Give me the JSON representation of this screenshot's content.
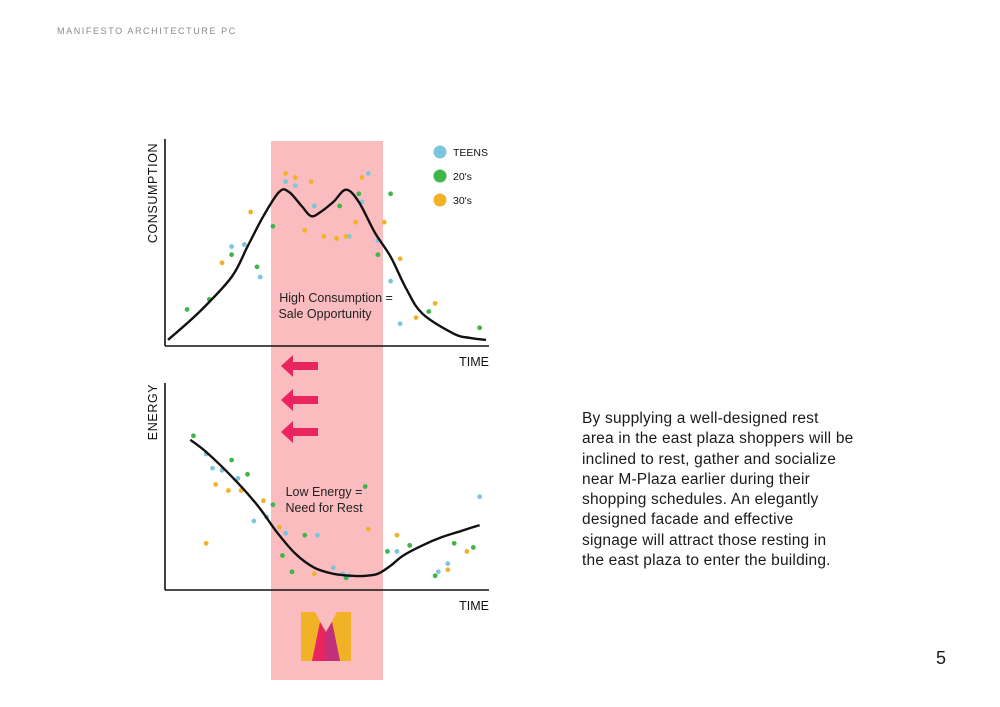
{
  "header": {
    "title": "MANIFESTO ARCHITECTURE PC"
  },
  "chart_data": [
    {
      "type": "line",
      "title": "",
      "xlabel": "TIME",
      "ylabel": "CONSUMPTION",
      "legend": {
        "placement": "top-right",
        "entries": [
          "TEENS",
          "20's",
          "30's"
        ]
      },
      "annotation": [
        "High Consumption =",
        "Sale Opportunity"
      ],
      "curve": {
        "x": [
          0,
          10,
          20,
          25,
          30,
          35,
          38,
          42,
          45,
          48,
          52,
          56,
          60,
          65,
          70,
          75,
          80,
          90,
          95,
          100
        ],
        "y": [
          2,
          16,
          33,
          48,
          63,
          75,
          75,
          68,
          63,
          65,
          70,
          76,
          70,
          55,
          43,
          27,
          15,
          5,
          3,
          2
        ]
      },
      "series": [
        {
          "name": "TEENS",
          "color": "#7cc6dd",
          "points": [
            [
              20,
              48
            ],
            [
              24,
              49
            ],
            [
              29,
              33
            ],
            [
              37,
              80
            ],
            [
              40,
              78
            ],
            [
              46,
              68
            ],
            [
              57,
              53
            ],
            [
              61,
              70
            ],
            [
              63,
              84
            ],
            [
              66,
              51
            ],
            [
              70,
              31
            ],
            [
              73,
              10
            ]
          ]
        },
        {
          "name": "20's",
          "color": "#3fb54a",
          "points": [
            [
              6,
              17
            ],
            [
              13,
              22
            ],
            [
              20,
              44
            ],
            [
              28,
              38
            ],
            [
              33,
              58
            ],
            [
              54,
              68
            ],
            [
              60,
              74
            ],
            [
              66,
              44
            ],
            [
              70,
              74
            ],
            [
              82,
              16
            ],
            [
              98,
              8
            ]
          ]
        },
        {
          "name": "30's",
          "color": "#f2b228",
          "points": [
            [
              17,
              40
            ],
            [
              26,
              65
            ],
            [
              37,
              84
            ],
            [
              40,
              82
            ],
            [
              45,
              80
            ],
            [
              43,
              56
            ],
            [
              49,
              53
            ],
            [
              53,
              52
            ],
            [
              56,
              53
            ],
            [
              59,
              60
            ],
            [
              61,
              82
            ],
            [
              68,
              60
            ],
            [
              73,
              42
            ],
            [
              78,
              13
            ],
            [
              84,
              20
            ]
          ]
        }
      ],
      "highlight_band": {
        "x_from": 30,
        "x_to": 63
      }
    },
    {
      "type": "line",
      "title": "",
      "xlabel": "TIME",
      "ylabel": "ENERGY",
      "annotation": [
        "Low Energy =",
        "Need for Rest"
      ],
      "curve": {
        "x": [
          7,
          12,
          20,
          28,
          34,
          40,
          46,
          52,
          58,
          62,
          66,
          70,
          74,
          80,
          86,
          92,
          98
        ],
        "y": [
          73,
          67,
          55,
          41,
          28,
          17,
          10,
          7,
          6,
          6,
          7,
          11,
          16,
          21,
          25,
          28,
          31
        ]
      },
      "series": [
        {
          "name": "TEENS",
          "color": "#7cc6dd",
          "points": [
            [
              12,
              66
            ],
            [
              14,
              59
            ],
            [
              17,
              58
            ],
            [
              22,
              54
            ],
            [
              27,
              33
            ],
            [
              31,
              35
            ],
            [
              37,
              27
            ],
            [
              47,
              26
            ],
            [
              52,
              10
            ],
            [
              55,
              7
            ],
            [
              57,
              6
            ],
            [
              72,
              18
            ],
            [
              85,
              8
            ],
            [
              88,
              12
            ],
            [
              98,
              45
            ]
          ]
        },
        {
          "name": "20's",
          "color": "#3fb54a",
          "points": [
            [
              8,
              75
            ],
            [
              20,
              63
            ],
            [
              25,
              56
            ],
            [
              33,
              41
            ],
            [
              36,
              16
            ],
            [
              39,
              8
            ],
            [
              43,
              26
            ],
            [
              56,
              5
            ],
            [
              62,
              50
            ],
            [
              69,
              18
            ],
            [
              76,
              21
            ],
            [
              84,
              6
            ],
            [
              90,
              22
            ],
            [
              96,
              20
            ]
          ]
        },
        {
          "name": "30's",
          "color": "#f2b228",
          "points": [
            [
              12,
              22
            ],
            [
              15,
              51
            ],
            [
              19,
              48
            ],
            [
              23,
              48
            ],
            [
              30,
              43
            ],
            [
              35,
              30
            ],
            [
              46,
              7
            ],
            [
              63,
              29
            ],
            [
              72,
              26
            ],
            [
              88,
              9
            ],
            [
              94,
              18
            ]
          ]
        }
      ]
    }
  ],
  "arrows": {
    "count": 3,
    "color": "#e8255f"
  },
  "band": {
    "color": "#fbbcbf"
  },
  "paragraph": {
    "lines": [
      "By supplying a well-designed rest",
      "area in the east plaza shoppers will be",
      "inclined to rest, gather and socialize",
      "near M-Plaza earlier during their",
      "shopping schedules. An elegantly",
      "designed facade  and effective",
      "signage will attract those resting in",
      "the east plaza to enter the building."
    ]
  },
  "page_number": "5"
}
